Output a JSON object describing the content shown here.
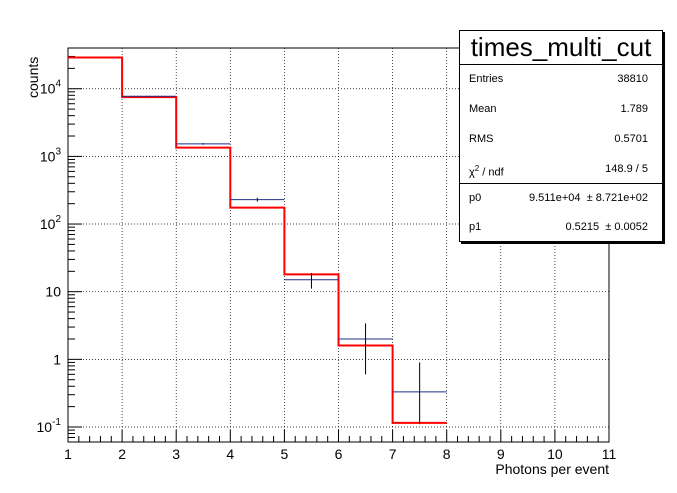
{
  "chart_data": {
    "type": "histogram",
    "xlabel": "Photons per event",
    "ylabel": "counts",
    "xlim": [
      1,
      11
    ],
    "ylim": [
      0.06,
      40000
    ],
    "yscale": "log",
    "grid": true,
    "x_ticks": [
      "1",
      "2",
      "3",
      "4",
      "5",
      "6",
      "7",
      "8",
      "9",
      "10",
      "11"
    ],
    "y_ticks": [
      {
        "value": 0.1,
        "base": "10",
        "exp": "-1"
      },
      {
        "value": 1,
        "label": "1"
      },
      {
        "value": 10,
        "label": "10"
      },
      {
        "value": 100,
        "base": "10",
        "exp": "2"
      },
      {
        "value": 1000,
        "base": "10",
        "exp": "3"
      },
      {
        "value": 10000,
        "base": "10",
        "exp": "4"
      }
    ],
    "data_points": [
      {
        "x": 2.5,
        "y": 7750,
        "xerr": 0.5,
        "ylow": 7660,
        "yhigh": 7840
      },
      {
        "x": 3.5,
        "y": 1530,
        "xerr": 0.5,
        "ylow": 1491,
        "yhigh": 1569
      },
      {
        "x": 4.5,
        "y": 230,
        "xerr": 0.5,
        "ylow": 215,
        "yhigh": 245
      },
      {
        "x": 5.5,
        "y": 15,
        "xerr": 0.5,
        "ylow": 11.1,
        "yhigh": 18.9
      },
      {
        "x": 6.5,
        "y": 2,
        "xerr": 0.5,
        "ylow": 0.6,
        "yhigh": 3.4
      },
      {
        "x": 7.5,
        "y": 0.33,
        "xerr": 0.5,
        "ylow": 0.11,
        "yhigh": 0.9
      }
    ],
    "fit_steps": [
      {
        "x0": 1,
        "x1": 2,
        "y": 29000
      },
      {
        "x0": 2,
        "x1": 3,
        "y": 7500
      },
      {
        "x0": 3,
        "x1": 4,
        "y": 1350
      },
      {
        "x0": 4,
        "x1": 5,
        "y": 175
      },
      {
        "x0": 5,
        "x1": 6,
        "y": 18
      },
      {
        "x0": 6,
        "x1": 7,
        "y": 1.6
      },
      {
        "x0": 7,
        "x1": 8,
        "y": 0.115
      }
    ],
    "colors": {
      "data": "#1f2f8f",
      "fit": "#ff0000",
      "grid": "#000000"
    }
  },
  "stats": {
    "title": "times_multi_cut",
    "rows": [
      {
        "label": "Entries",
        "value": "38810"
      },
      {
        "label": "Mean",
        "value": "1.789"
      },
      {
        "label": "RMS",
        "value": "0.5701"
      },
      {
        "label_chi": "χ",
        "label_sup": "2",
        "label_rest": " / ndf",
        "value": "148.9 / 5"
      },
      {
        "label": "p0",
        "value": "9.511e+04  ± 8.721e+02"
      },
      {
        "label": "p1",
        "value": "0.5215  ± 0.0052"
      }
    ]
  }
}
